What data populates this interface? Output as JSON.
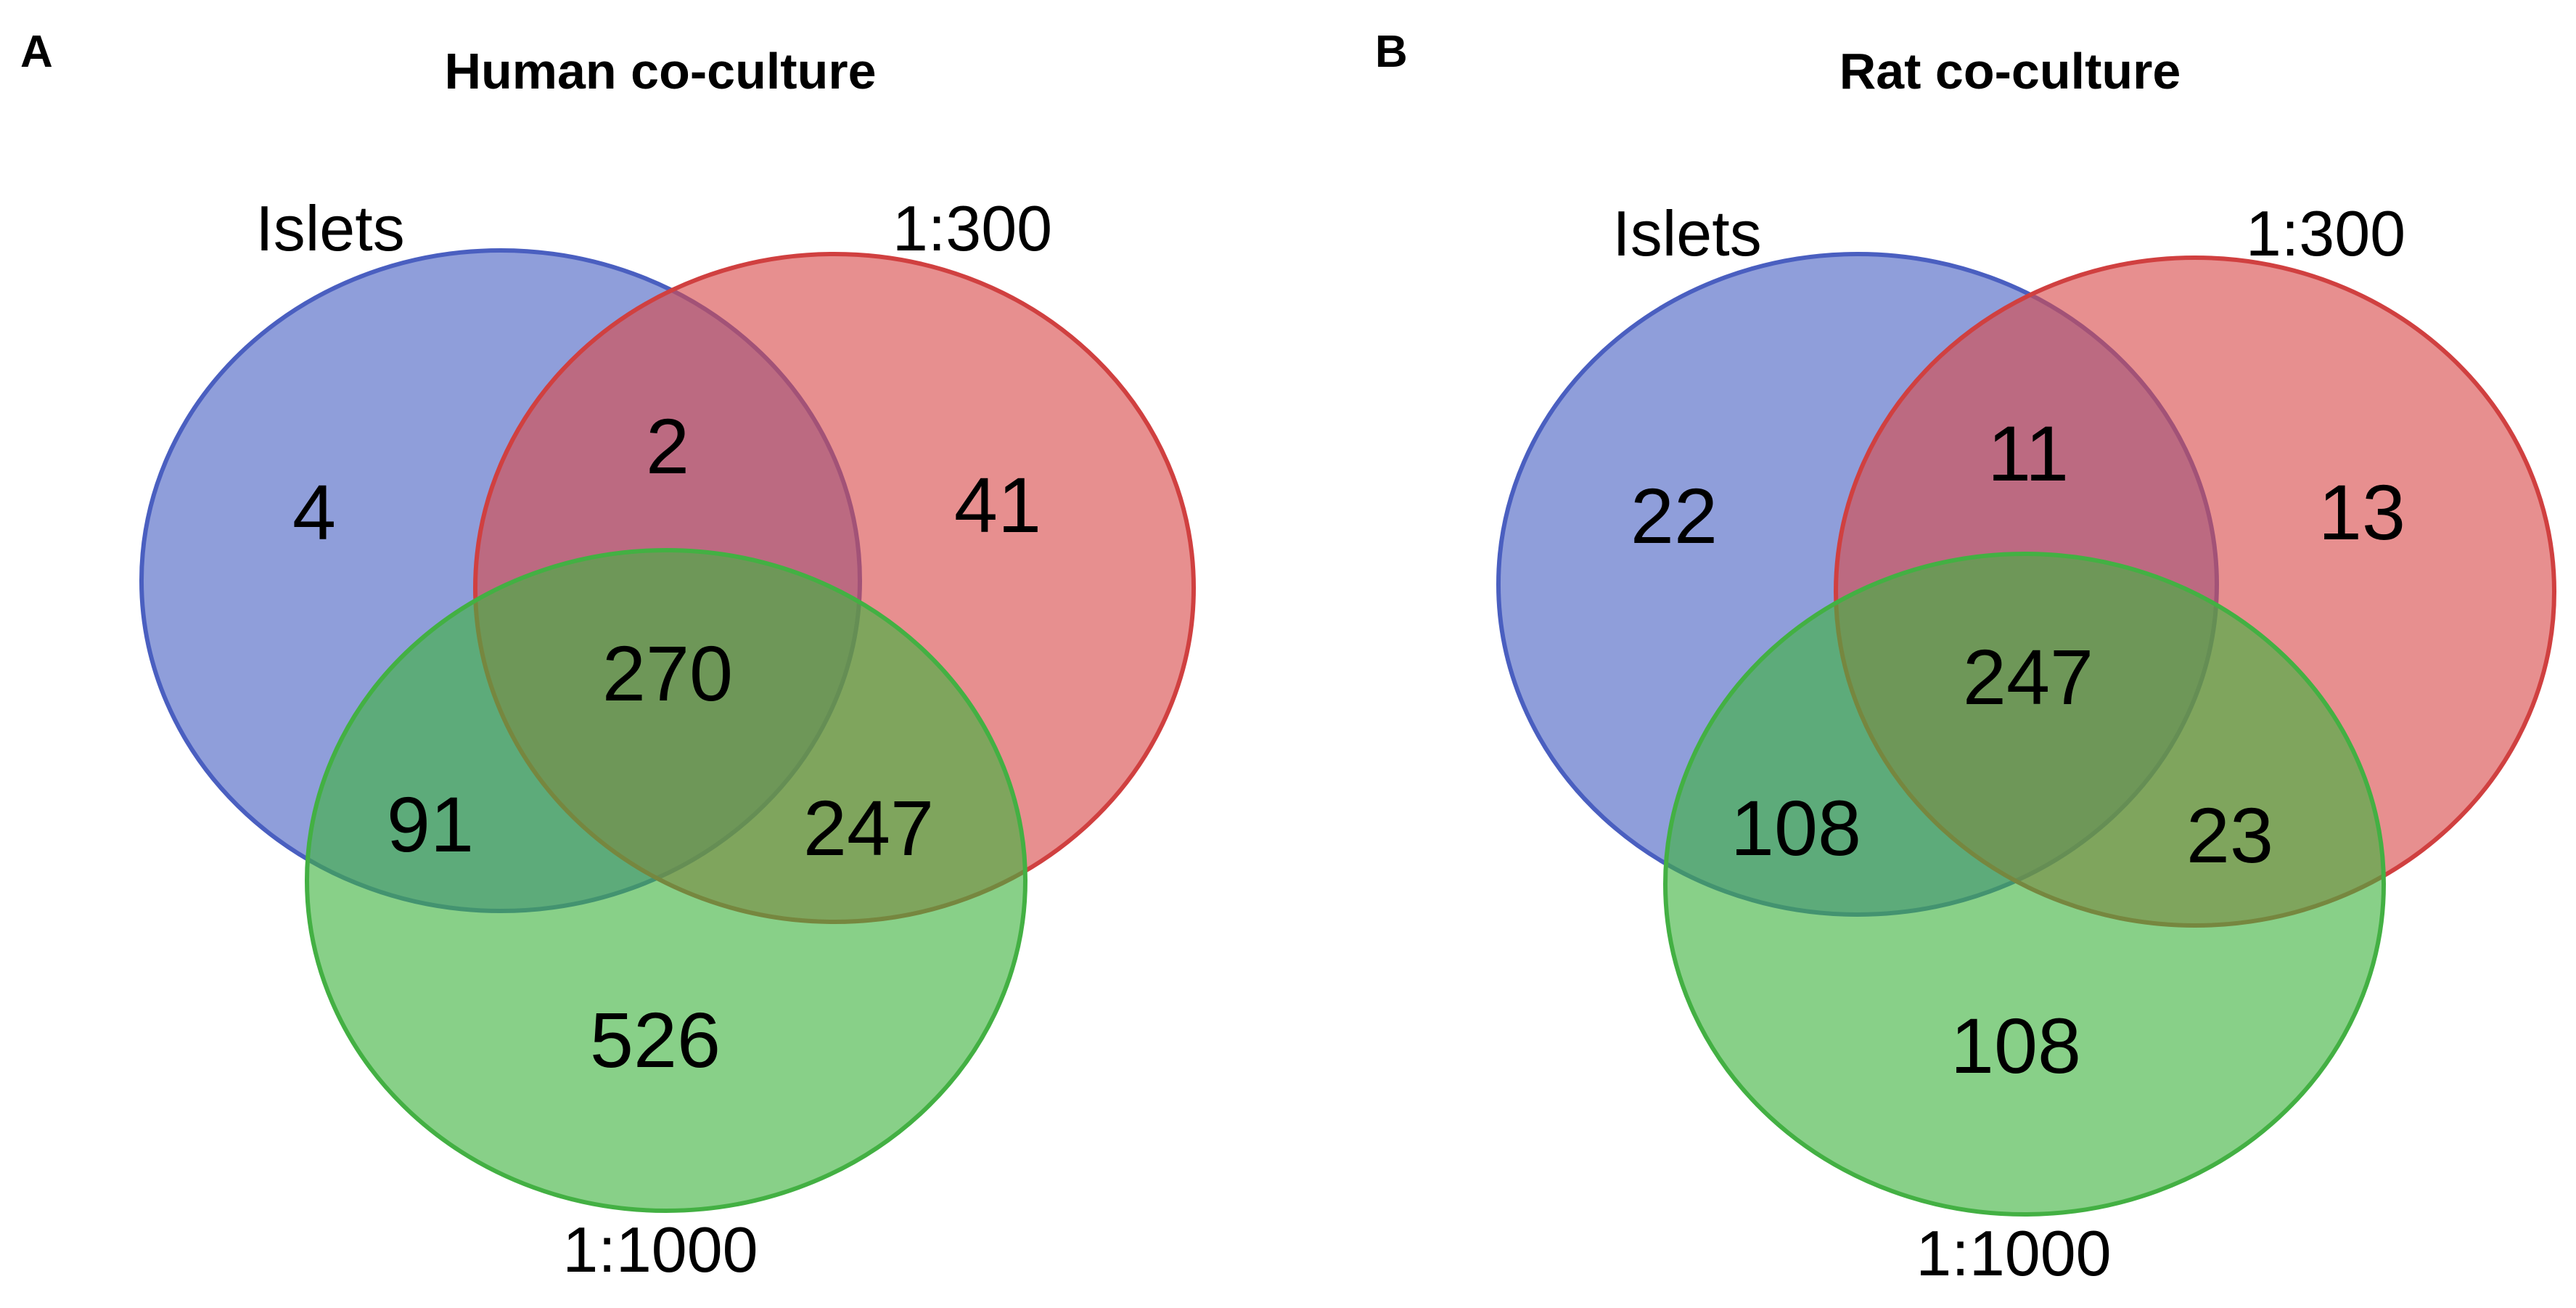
{
  "colors": {
    "set_a_fill": "#4a63c3",
    "set_a_stroke": "#4a5fc0",
    "set_b_fill": "#d84a4a",
    "set_b_stroke": "#d04040",
    "set_c_fill": "#3fb33f",
    "set_c_stroke": "#43b043",
    "text": "#000000",
    "background": "#ffffff"
  },
  "panels": [
    {
      "letter": "A",
      "title": "Human co-culture",
      "sets": {
        "islets": "Islets",
        "ratio_300": "1:300",
        "ratio_1000": "1:1000"
      },
      "regions": {
        "islets_only": "4",
        "islets_and_300": "2",
        "ratio_300_only": "41",
        "all_three": "270",
        "islets_and_1000": "91",
        "ratio_300_and_1000": "247",
        "ratio_1000_only": "526"
      }
    },
    {
      "letter": "B",
      "title": "Rat co-culture",
      "sets": {
        "islets": "Islets",
        "ratio_300": "1:300",
        "ratio_1000": "1:1000"
      },
      "regions": {
        "islets_only": "22",
        "islets_and_300": "11",
        "ratio_300_only": "13",
        "all_three": "247",
        "islets_and_1000": "108",
        "ratio_300_and_1000": "23",
        "ratio_1000_only": "108"
      }
    }
  ]
}
